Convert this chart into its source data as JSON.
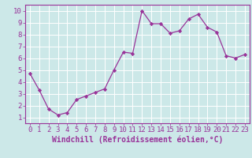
{
  "x": [
    0,
    1,
    2,
    3,
    4,
    5,
    6,
    7,
    8,
    9,
    10,
    11,
    12,
    13,
    14,
    15,
    16,
    17,
    18,
    19,
    20,
    21,
    22,
    23
  ],
  "y": [
    4.7,
    3.3,
    1.7,
    1.2,
    1.4,
    2.5,
    2.8,
    3.1,
    3.4,
    5.0,
    6.5,
    6.4,
    10.0,
    8.9,
    8.9,
    8.1,
    8.3,
    9.3,
    9.7,
    8.6,
    8.2,
    6.2,
    6.0,
    6.3
  ],
  "line_color": "#993399",
  "marker": "D",
  "marker_size": 2.2,
  "bg_color": "#cce8e8",
  "grid_color": "#ffffff",
  "xlabel": "Windchill (Refroidissement éolien,°C)",
  "xlim": [
    -0.5,
    23.5
  ],
  "ylim": [
    0.5,
    10.5
  ],
  "yticks": [
    1,
    2,
    3,
    4,
    5,
    6,
    7,
    8,
    9,
    10
  ],
  "xticks": [
    0,
    1,
    2,
    3,
    4,
    5,
    6,
    7,
    8,
    9,
    10,
    11,
    12,
    13,
    14,
    15,
    16,
    17,
    18,
    19,
    20,
    21,
    22,
    23
  ],
  "axis_label_color": "#993399",
  "tick_color": "#993399",
  "spine_color": "#993399",
  "xlabel_fontsize": 7,
  "tick_fontsize": 6.5,
  "linewidth": 0.9
}
